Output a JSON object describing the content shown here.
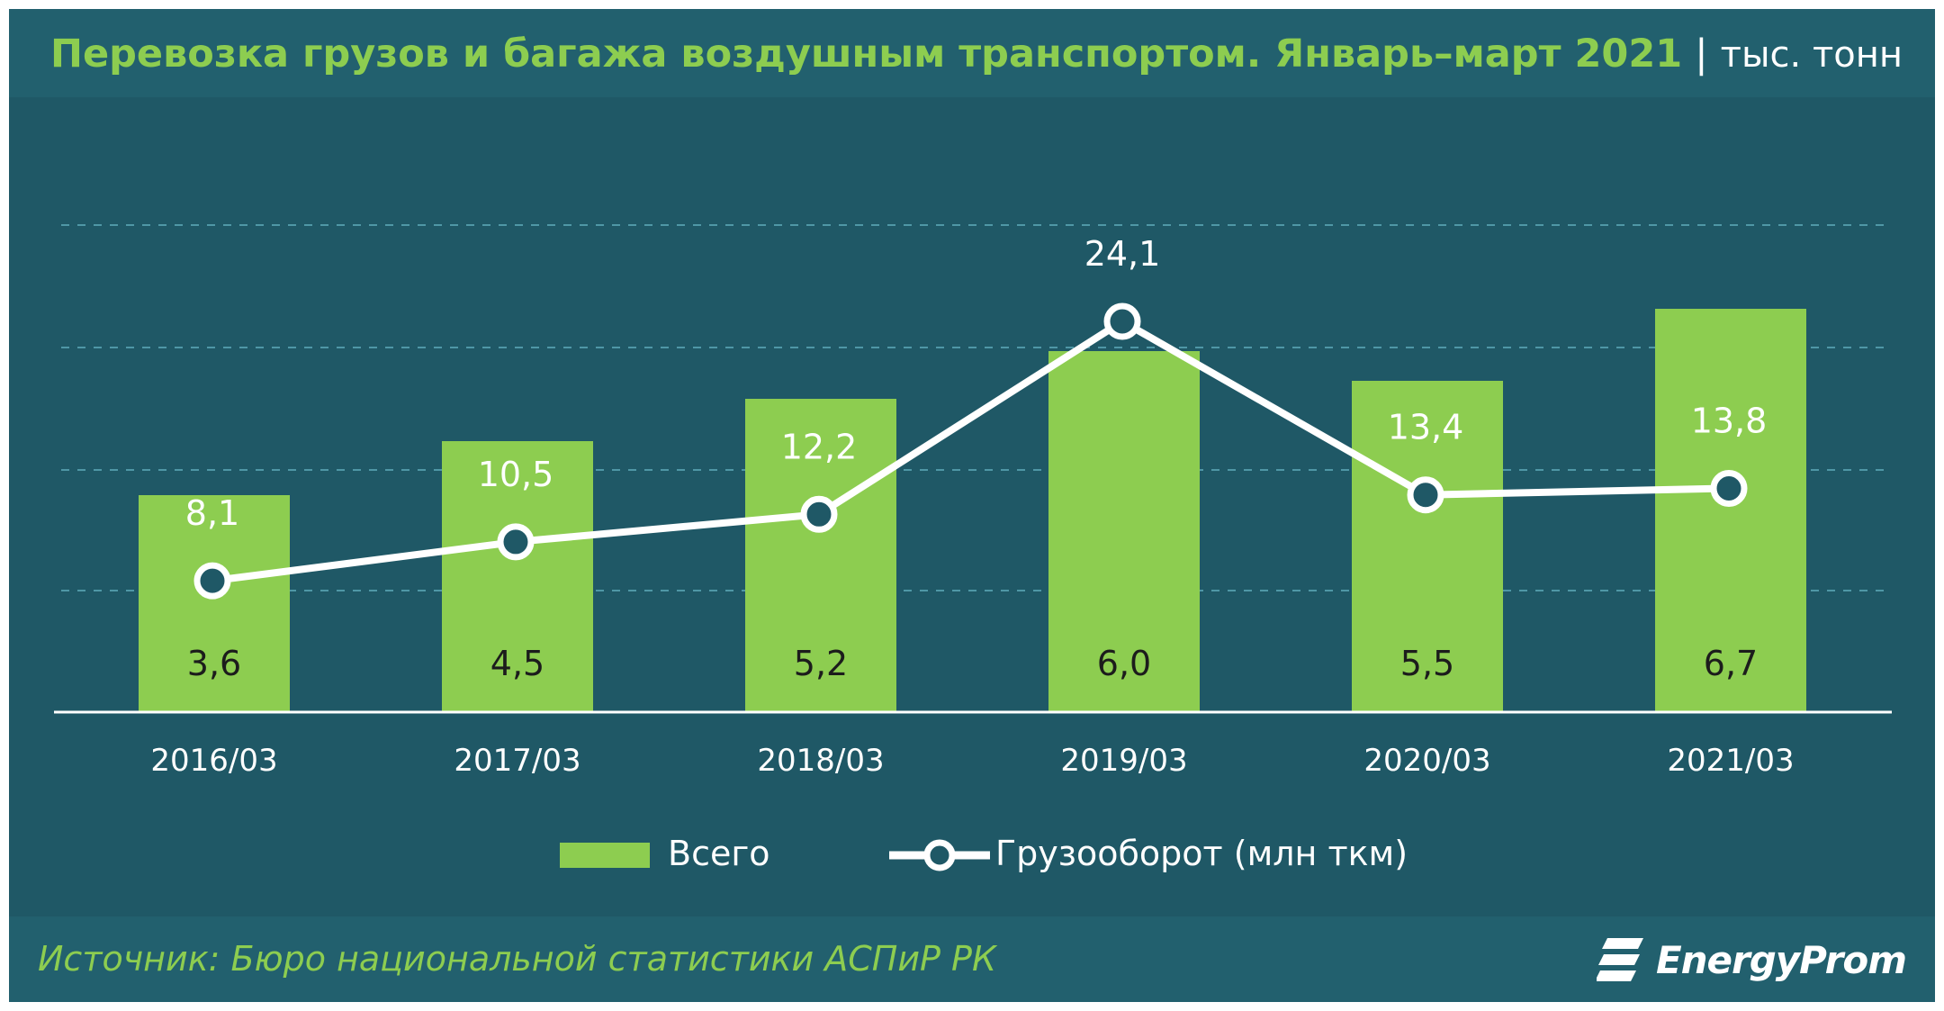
{
  "title": {
    "main": "Перевозка грузов и багажа воздушным транспортом. Январь–март 2021",
    "separator": "|",
    "unit": "тыс. тонн"
  },
  "source": "Источник: Бюро национальной  статистики АСПиР РК",
  "brand": "EnergyProm",
  "legend": {
    "bar_label": "Всего",
    "line_label": "Грузооборот (млн ткм)"
  },
  "colors": {
    "background": "#1f5866",
    "bar": "#8dcd50",
    "line": "#ffffff",
    "title": "#8dcd50"
  },
  "chart_data": {
    "type": "bar",
    "categories": [
      "2016/03",
      "2017/03",
      "2018/03",
      "2019/03",
      "2020/03",
      "2021/03"
    ],
    "series": [
      {
        "name": "Всего",
        "type": "bar",
        "values": [
          3.6,
          4.5,
          5.2,
          6.0,
          5.5,
          6.7
        ],
        "labels": [
          "3,6",
          "4,5",
          "5,2",
          "6,0",
          "5,5",
          "6,7"
        ]
      },
      {
        "name": "Грузооборот (млн ткм)",
        "type": "line",
        "values": [
          8.1,
          10.5,
          12.2,
          24.1,
          13.4,
          13.8
        ],
        "labels": [
          "8,1",
          "10,5",
          "12,2",
          "24,1",
          "13,4",
          "13,8"
        ]
      }
    ],
    "bar_ylim": [
      0,
      8
    ],
    "line_ylim": [
      0,
      30
    ],
    "grid": true,
    "legend_position": "bottom"
  }
}
